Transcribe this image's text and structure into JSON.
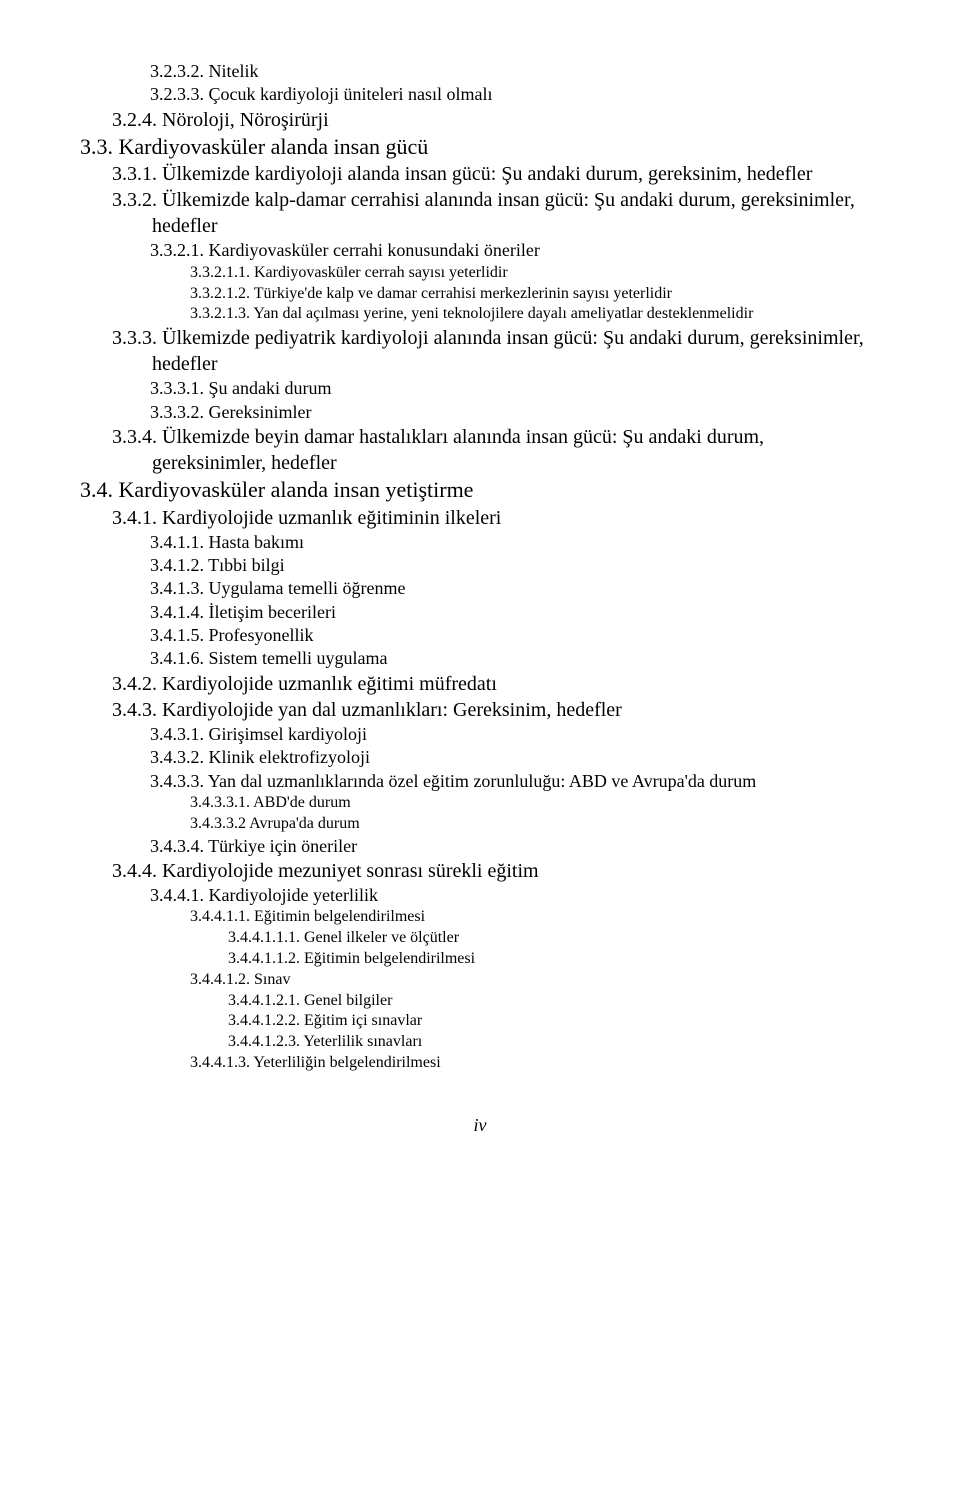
{
  "toc": [
    {
      "num": "3.2.3.2.",
      "text": "Nitelik",
      "lvl": "l2",
      "fs": "fs-18"
    },
    {
      "num": "3.2.3.3.",
      "text": "Çocuk kardiyoloji üniteleri nasıl olmalı",
      "lvl": "l2",
      "fs": "fs-18"
    },
    {
      "num": "3.2.4.",
      "text": "Nöroloji, Nöroşirürji",
      "lvl": "l1",
      "fs": "fs-20"
    },
    {
      "num": "3.3.",
      "text": "Kardiyovasküler alanda insan gücü",
      "lvl": "l0",
      "fs": "fs-22"
    },
    {
      "num": "3.3.1.",
      "text": "Ülkemizde kardiyoloji alanda insan gücü: Şu andaki durum, gereksinim, hedefler",
      "lvl": "l1",
      "fs": "fs-20"
    },
    {
      "num": "3.3.2.",
      "text": "Ülkemizde kalp-damar cerrahisi alanında insan gücü: Şu andaki durum, gereksinimler, hedefler",
      "lvl": "l1",
      "fs": "fs-20"
    },
    {
      "num": "3.3.2.1.",
      "text": "Kardiyovasküler cerrahi konusundaki öneriler",
      "lvl": "l2",
      "fs": "fs-18"
    },
    {
      "num": "3.3.2.1.1.",
      "text": "Kardiyovasküler cerrah sayısı yeterlidir",
      "lvl": "l3",
      "fs": "fs-16"
    },
    {
      "num": "3.3.2.1.2.",
      "text": "Türkiye'de kalp ve damar cerrahisi merkezlerinin sayısı yeterlidir",
      "lvl": "l3",
      "fs": "fs-16"
    },
    {
      "num": "3.3.2.1.3.",
      "text": "Yan dal açılması yerine, yeni teknolojilere dayalı ameliyatlar desteklenmelidir",
      "lvl": "l3",
      "fs": "fs-16",
      "justify": true
    },
    {
      "num": "3.3.3.",
      "text": "Ülkemizde pediyatrik kardiyoloji alanında insan gücü: Şu andaki durum, gereksinimler, hedefler",
      "lvl": "l1",
      "fs": "fs-20"
    },
    {
      "num": "3.3.3.1.",
      "text": "Şu andaki durum",
      "lvl": "l2",
      "fs": "fs-18"
    },
    {
      "num": "3.3.3.2.",
      "text": "Gereksinimler",
      "lvl": "l2",
      "fs": "fs-18"
    },
    {
      "num": "3.3.4.",
      "text": "Ülkemizde beyin damar hastalıkları alanında insan gücü: Şu andaki durum, gereksinimler, hedefler",
      "lvl": "l1",
      "fs": "fs-20"
    },
    {
      "num": "3.4.",
      "text": "Kardiyovasküler alanda insan yetiştirme",
      "lvl": "l0",
      "fs": "fs-22"
    },
    {
      "num": "3.4.1.",
      "text": "Kardiyolojide uzmanlık eğitiminin ilkeleri",
      "lvl": "l1",
      "fs": "fs-20"
    },
    {
      "num": "3.4.1.1.",
      "text": "Hasta bakımı",
      "lvl": "l2",
      "fs": "fs-18"
    },
    {
      "num": "3.4.1.2.",
      "text": "Tıbbi bilgi",
      "lvl": "l2",
      "fs": "fs-18"
    },
    {
      "num": "3.4.1.3.",
      "text": "Uygulama temelli öğrenme",
      "lvl": "l2",
      "fs": "fs-18"
    },
    {
      "num": "3.4.1.4.",
      "text": "İletişim becerileri",
      "lvl": "l2",
      "fs": "fs-18"
    },
    {
      "num": "3.4.1.5.",
      "text": "Profesyonellik",
      "lvl": "l2",
      "fs": "fs-18"
    },
    {
      "num": "3.4.1.6.",
      "text": "Sistem temelli uygulama",
      "lvl": "l2",
      "fs": "fs-18"
    },
    {
      "num": "3.4.2.",
      "text": "Kardiyolojide uzmanlık eğitimi müfredatı",
      "lvl": "l1",
      "fs": "fs-20"
    },
    {
      "num": "3.4.3.",
      "text": "Kardiyolojide  yan dal uzmanlıkları: Gereksinim, hedefler",
      "lvl": "l1",
      "fs": "fs-20"
    },
    {
      "num": "3.4.3.1.",
      "text": "Girişimsel kardiyoloji",
      "lvl": "l2",
      "fs": "fs-18"
    },
    {
      "num": "3.4.3.2.",
      "text": "Klinik elektrofizyoloji",
      "lvl": "l2",
      "fs": "fs-18"
    },
    {
      "num": "3.4.3.3.",
      "text": "Yan dal uzmanlıklarında özel eğitim zorunluluğu: ABD ve Avrupa'da durum",
      "lvl": "l2",
      "fs": "fs-18",
      "justify": true
    },
    {
      "num": "3.4.3.3.1.",
      "text": "ABD'de durum",
      "lvl": "l3",
      "fs": "fs-16"
    },
    {
      "num": "3.4.3.3.2",
      "text": "Avrupa'da durum",
      "lvl": "l3",
      "fs": "fs-16"
    },
    {
      "num": "3.4.3.4.",
      "text": "Türkiye için öneriler",
      "lvl": "l2",
      "fs": "fs-18"
    },
    {
      "num": "3.4.4.",
      "text": "Kardiyolojide mezuniyet sonrası sürekli eğitim",
      "lvl": "l1",
      "fs": "fs-20"
    },
    {
      "num": "3.4.4.1.",
      "text": "Kardiyolojide yeterlilik",
      "lvl": "l2",
      "fs": "fs-18"
    },
    {
      "num": "3.4.4.1.1.",
      "text": "Eğitimin belgelendirilmesi",
      "lvl": "l3",
      "fs": "fs-16"
    },
    {
      "num": "3.4.4.1.1.1.",
      "text": "Genel ilkeler ve ölçütler",
      "lvl": "l4",
      "fs": "fs-16"
    },
    {
      "num": "3.4.4.1.1.2.",
      "text": "Eğitimin belgelendirilmesi",
      "lvl": "l4",
      "fs": "fs-16"
    },
    {
      "num": "3.4.4.1.2.",
      "text": "Sınav",
      "lvl": "l3",
      "fs": "fs-16"
    },
    {
      "num": "3.4.4.1.2.1.",
      "text": "Genel bilgiler",
      "lvl": "l4",
      "fs": "fs-16"
    },
    {
      "num": "3.4.4.1.2.2.",
      "text": "Eğitim içi sınavlar",
      "lvl": "l4",
      "fs": "fs-16"
    },
    {
      "num": "3.4.4.1.2.3.",
      "text": "Yeterlilik sınavları",
      "lvl": "l4",
      "fs": "fs-16"
    },
    {
      "num": "3.4.4.1.3.",
      "text": "Yeterliliğin belgelendirilmesi",
      "lvl": "l3",
      "fs": "fs-16"
    }
  ],
  "pagenum": "iv",
  "indent_map": {
    "l0": 0,
    "l1": 32,
    "l2": 70,
    "l3": 110,
    "l4": 148,
    "l5": 185
  },
  "text_indent": 40
}
